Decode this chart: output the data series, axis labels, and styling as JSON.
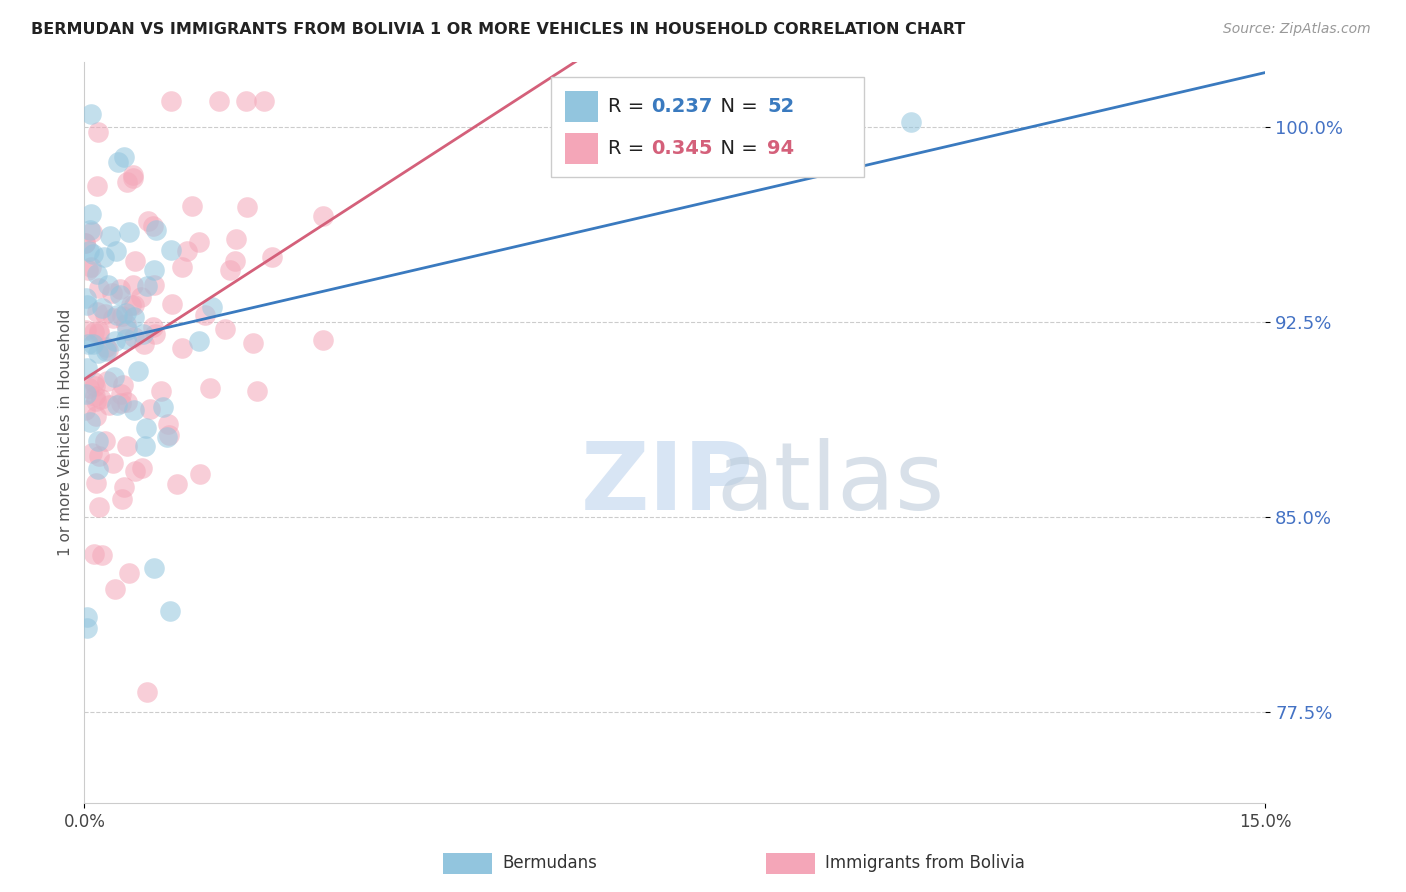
{
  "title": "BERMUDAN VS IMMIGRANTS FROM BOLIVIA 1 OR MORE VEHICLES IN HOUSEHOLD CORRELATION CHART",
  "source": "Source: ZipAtlas.com",
  "ylabel": "1 or more Vehicles in Household",
  "xlim": [
    0.0,
    15.0
  ],
  "ylim": [
    74.0,
    102.5
  ],
  "x_tick_vals": [
    0.0,
    15.0
  ],
  "x_tick_labels": [
    "0.0%",
    "15.0%"
  ],
  "y_tick_vals": [
    77.5,
    85.0,
    92.5,
    100.0
  ],
  "y_tick_labels": [
    "77.5%",
    "85.0%",
    "92.5%",
    "100.0%"
  ],
  "blue_color": "#92c5de",
  "pink_color": "#f4a6b8",
  "blue_line_color": "#3a7abf",
  "pink_line_color": "#d4607a",
  "blue_r": "0.237",
  "blue_n": "52",
  "pink_r": "0.345",
  "pink_n": "94",
  "watermark_zip": "ZIP",
  "watermark_atlas": "atlas",
  "seed": 17,
  "n_blue": 52,
  "n_pink": 94
}
